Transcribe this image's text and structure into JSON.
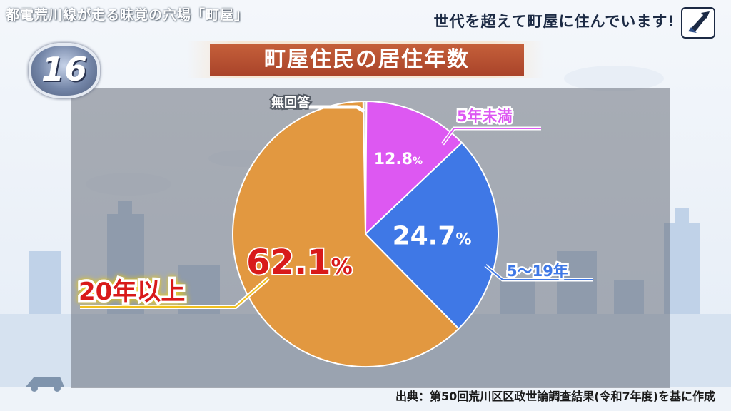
{
  "header": {
    "program_title": "都電荒川線が走る昧覚の穴場「町屋」",
    "corner_caption": "世代を超えて町屋に住んでいます!",
    "episode_number": "16"
  },
  "source_note": "出典：第50回荒川区区政世論調査結果(令和7年度)を基に作成",
  "colors": {
    "under5": "#dd58f2",
    "from5to19": "#3f78e6",
    "over20": "#e29840",
    "noanswer": "#d2d2d2",
    "title_band": "#b74e30"
  },
  "chart_data": {
    "type": "pie",
    "title": "町屋住民の居住年数",
    "unit": "%",
    "slices": [
      {
        "label": "無回答",
        "value": 0.4,
        "value_label": "",
        "color": "#d2d2d2"
      },
      {
        "label": "5年未満",
        "value": 12.8,
        "value_label": "12.8",
        "color": "#dd58f2"
      },
      {
        "label": "5〜19年",
        "value": 24.7,
        "value_label": "24.7",
        "color": "#3f78e6"
      },
      {
        "label": "20年以上",
        "value": 62.1,
        "value_label": "62.1",
        "color": "#e29840"
      }
    ]
  }
}
